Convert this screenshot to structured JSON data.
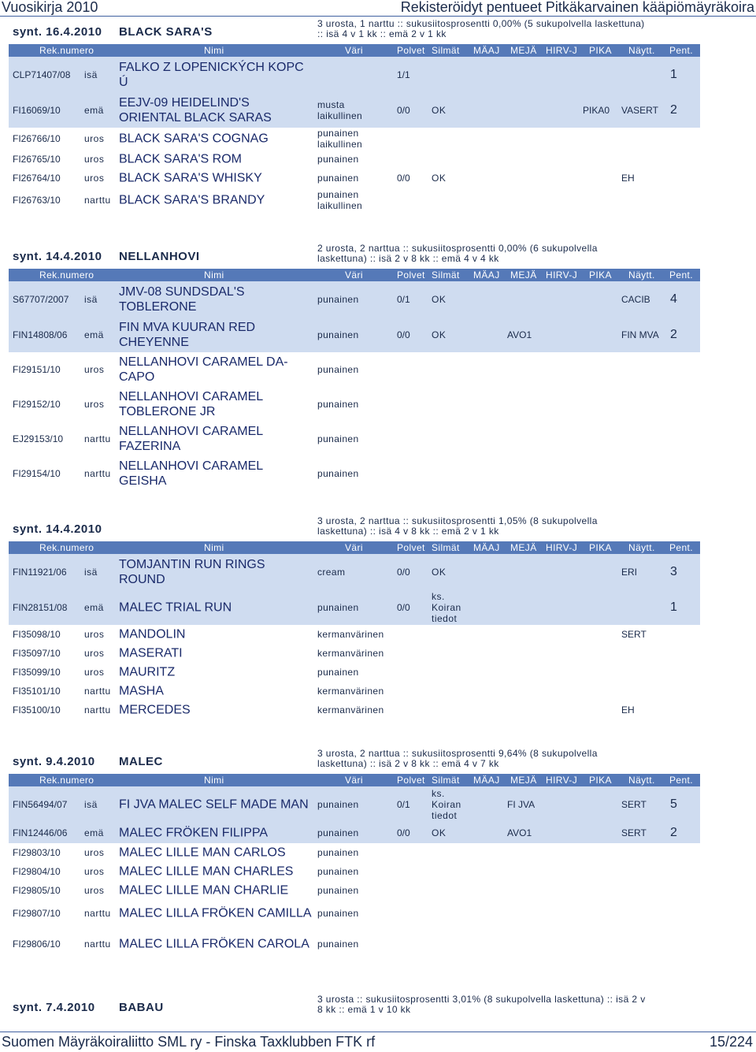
{
  "header": {
    "left": "Vuosikirja 2010",
    "right": "Rekisteröidyt pentueet Pitkäkarvainen kääpiömäyräkoira"
  },
  "footer": {
    "left": "Suomen Mäyräkoiraliitto SML ry - Finska Taxklubben FTK rf",
    "right": "15/224"
  },
  "columns": [
    "Rek.numero",
    "Nimi",
    "Väri",
    "Polvet",
    "Silmät",
    "MÄAJ",
    "MEJÄ",
    "HIRV-J",
    "PIKA",
    "Näytt.",
    "Pent."
  ],
  "litters": [
    {
      "date": "synt. 16.4.2010",
      "kennel": "BLACK SARA'S",
      "summary": "3 urosta, 1 narttu :: sukusiitosprosentti 0,00% (5 sukupolvella laskettuna) :: isä 4 v 1 kk :: emä 2 v 1 kk",
      "parents": [
        {
          "reg": "CLP71407/08",
          "sex": "isä",
          "name": "FALKO Z LOPENICKÝCH KOPC Ú",
          "color": "",
          "hips": "1/1",
          "eyes": "",
          "maaj": "",
          "pika": "",
          "show": "",
          "pups": "1"
        },
        {
          "reg": "FI16069/10",
          "sex": "emä",
          "name": "EEJV-09 HEIDELIND'S ORIENTAL BLACK SARAS",
          "color": "musta laikullinen",
          "hips": "0/0",
          "eyes": "OK",
          "maaj": "",
          "pika": "PIKA0",
          "show": "VASERT",
          "pups": "2"
        }
      ],
      "pups": [
        {
          "reg": "FI26766/10",
          "sex": "uros",
          "name": "BLACK SARA'S COGNAG",
          "color": "punainen laikullinen",
          "hips": "",
          "eyes": "",
          "show": ""
        },
        {
          "reg": "FI26765/10",
          "sex": "uros",
          "name": "BLACK SARA'S ROM",
          "color": "punainen",
          "hips": "",
          "eyes": "",
          "show": ""
        },
        {
          "reg": "FI26764/10",
          "sex": "uros",
          "name": "BLACK SARA'S WHISKY",
          "color": "punainen",
          "hips": "0/0",
          "eyes": "OK",
          "show": "EH"
        },
        {
          "reg": "FI26763/10",
          "sex": "narttu",
          "name": "BLACK SARA'S BRANDY",
          "color": "punainen laikullinen",
          "hips": "",
          "eyes": "",
          "show": ""
        }
      ]
    },
    {
      "date": "synt. 14.4.2010",
      "kennel": "NELLANHOVI",
      "summary": "2 urosta, 2 narttua :: sukusiitosprosentti 0,00% (6 sukupolvella laskettuna) :: isä 2 v 8 kk :: emä 4 v 4 kk",
      "parents": [
        {
          "reg": "S67707/2007",
          "sex": "isä",
          "name": "JMV-08 SUNDSDAL'S TOBLERONE",
          "color": "punainen",
          "hips": "0/1",
          "eyes": "OK",
          "maaj": "",
          "pika": "",
          "show": "CACIB",
          "pups": "4"
        },
        {
          "reg": "FIN14808/06",
          "sex": "emä",
          "name": "FIN MVA KUURAN RED CHEYENNE",
          "color": "punainen",
          "hips": "0/0",
          "eyes": "OK",
          "maaj": "AVO1",
          "pika": "",
          "show": "FIN MVA",
          "pups": "2"
        }
      ],
      "pups": [
        {
          "reg": "FI29151/10",
          "sex": "uros",
          "name": "NELLANHOVI CARAMEL DA-CAPO",
          "color": "punainen",
          "hips": "",
          "eyes": "",
          "show": ""
        },
        {
          "reg": "FI29152/10",
          "sex": "uros",
          "name": "NELLANHOVI CARAMEL TOBLERONE JR",
          "color": "punainen",
          "hips": "",
          "eyes": "",
          "show": ""
        },
        {
          "reg": "EJ29153/10",
          "sex": "narttu",
          "name": "NELLANHOVI CARAMEL FAZERINA",
          "color": "punainen",
          "hips": "",
          "eyes": "",
          "show": ""
        },
        {
          "reg": "FI29154/10",
          "sex": "narttu",
          "name": "NELLANHOVI CARAMEL GEISHA",
          "color": "punainen",
          "hips": "",
          "eyes": "",
          "show": ""
        }
      ]
    },
    {
      "date": "synt. 14.4.2010",
      "kennel": "",
      "summary": "3 urosta, 2 narttua :: sukusiitosprosentti 1,05% (8 sukupolvella laskettuna) :: isä 4 v 8 kk :: emä 2 v 1 kk",
      "parents": [
        {
          "reg": "FIN11921/06",
          "sex": "isä",
          "name": "TOMJANTIN RUN RINGS ROUND",
          "color": "cream",
          "hips": "0/0",
          "eyes": "OK",
          "maaj": "",
          "pika": "",
          "show": "ERI",
          "pups": "3"
        },
        {
          "reg": "FIN28151/08",
          "sex": "emä",
          "name": "MALEC TRIAL RUN",
          "color": "punainen",
          "hips": "0/0",
          "eyes": "ks. Koiran tiedot",
          "maaj": "",
          "pika": "",
          "show": "",
          "pups": "1"
        }
      ],
      "pups": [
        {
          "reg": "FI35098/10",
          "sex": "uros",
          "name": "MANDOLIN",
          "color": "kermanvärinen",
          "hips": "",
          "eyes": "",
          "show": "SERT"
        },
        {
          "reg": "FI35097/10",
          "sex": "uros",
          "name": "MASERATI",
          "color": "kermanvärinen",
          "hips": "",
          "eyes": "",
          "show": ""
        },
        {
          "reg": "FI35099/10",
          "sex": "uros",
          "name": "MAURITZ",
          "color": "punainen",
          "hips": "",
          "eyes": "",
          "show": ""
        },
        {
          "reg": "FI35101/10",
          "sex": "narttu",
          "name": "MASHA",
          "color": "kermanvärinen",
          "hips": "",
          "eyes": "",
          "show": ""
        },
        {
          "reg": "FI35100/10",
          "sex": "narttu",
          "name": "MERCEDES",
          "color": "kermanvärinen",
          "hips": "",
          "eyes": "",
          "show": "EH"
        }
      ]
    },
    {
      "date": "synt. 9.4.2010",
      "kennel": "MALEC",
      "summary": "3 urosta, 2 narttua :: sukusiitosprosentti 9,64% (8 sukupolvella laskettuna) :: isä 2 v 8 kk :: emä 4 v 7 kk",
      "parents": [
        {
          "reg": "FIN56494/07",
          "sex": "isä",
          "name": "FI JVA MALEC SELF MADE MAN",
          "color": "punainen",
          "hips": "0/1",
          "eyes": "ks. Koiran tiedot",
          "maaj": "FI JVA",
          "pika": "",
          "show": "SERT",
          "pups": "5"
        },
        {
          "reg": "FIN12446/06",
          "sex": "emä",
          "name": "MALEC FRÖKEN FILIPPA",
          "color": "punainen",
          "hips": "0/0",
          "eyes": "OK",
          "maaj": "AVO1",
          "pika": "",
          "show": "SERT",
          "pups": "2"
        }
      ],
      "pups": [
        {
          "reg": "FI29803/10",
          "sex": "uros",
          "name": "MALEC LILLE MAN CARLOS",
          "color": "punainen",
          "hips": "",
          "eyes": "",
          "show": ""
        },
        {
          "reg": "FI29804/10",
          "sex": "uros",
          "name": "MALEC LILLE MAN CHARLES",
          "color": "punainen",
          "hips": "",
          "eyes": "",
          "show": ""
        },
        {
          "reg": "FI29805/10",
          "sex": "uros",
          "name": "MALEC LILLE MAN CHARLIE",
          "color": "punainen",
          "hips": "",
          "eyes": "",
          "show": ""
        },
        {
          "reg": "FI29807/10",
          "sex": "narttu",
          "name": "MALEC LILLA FRÖKEN CAMILLA",
          "color": "punainen",
          "hips": "",
          "eyes": "",
          "show": ""
        },
        {
          "reg": "FI29806/10",
          "sex": "narttu",
          "name": "MALEC LILLA FRÖKEN CAROLA",
          "color": "punainen",
          "hips": "",
          "eyes": "",
          "show": ""
        }
      ]
    },
    {
      "date": "synt. 7.4.2010",
      "kennel": "BABAU",
      "summary": "3 urosta :: sukusiitosprosentti 3,01% (8 sukupolvella laskettuna) :: isä 2 v 8 kk :: emä 1 v 10 kk",
      "parents": [],
      "pups": []
    }
  ]
}
